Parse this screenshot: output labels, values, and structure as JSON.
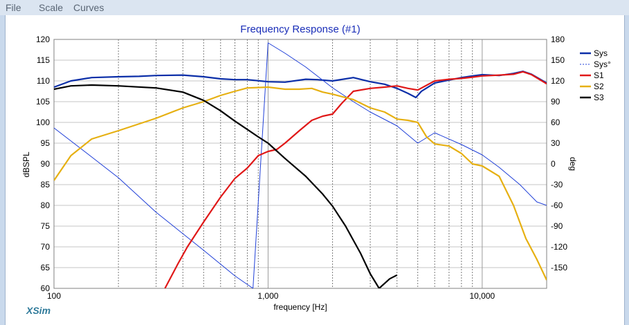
{
  "menu": {
    "file": "File",
    "scale": "Scale",
    "curves": "Curves"
  },
  "brand": "XSim",
  "chart_data": {
    "type": "line",
    "title": "Frequency Response (#1)",
    "xlabel": "frequency [Hz]",
    "ylabel": "dBSPL",
    "y2label": "deg",
    "xscale": "log",
    "xlim": [
      100,
      20000
    ],
    "ylim": [
      60,
      120
    ],
    "y2lim": [
      -180,
      180
    ],
    "x_tick_labels": [
      {
        "value": 100,
        "label": "100"
      },
      {
        "value": 1000,
        "label": "1,000"
      },
      {
        "value": 10000,
        "label": "10,000"
      }
    ],
    "y_ticks": [
      60,
      65,
      70,
      75,
      80,
      85,
      90,
      95,
      100,
      105,
      110,
      115,
      120
    ],
    "y2_ticks": [
      -150,
      -120,
      -90,
      -60,
      -30,
      0,
      30,
      60,
      90,
      120,
      150,
      180
    ],
    "grid": true,
    "legend_position": "right",
    "series": [
      {
        "name": "Sys",
        "color": "#0b2ea8",
        "axis": "left",
        "x": [
          100,
          120,
          150,
          200,
          250,
          300,
          400,
          500,
          600,
          700,
          800,
          1000,
          1200,
          1500,
          1700,
          2000,
          2500,
          3000,
          3500,
          4000,
          4500,
          4900,
          5200,
          6000,
          7000,
          8000,
          9000,
          10000,
          12000,
          14000,
          15500,
          17000,
          20000
        ],
        "y": [
          108.5,
          110,
          110.8,
          111,
          111.1,
          111.3,
          111.4,
          111,
          110.5,
          110.3,
          110.3,
          109.8,
          109.7,
          110.4,
          110.3,
          110,
          110.8,
          109.8,
          109.2,
          108.2,
          107,
          106,
          107.5,
          109.5,
          110.2,
          110.8,
          111.2,
          111.5,
          111.3,
          111.8,
          112.3,
          111.6,
          109.5
        ]
      },
      {
        "name": "Sys°",
        "color": "#1f3fd8",
        "axis": "right",
        "x": [
          100,
          150,
          200,
          300,
          500,
          700,
          850,
          1000,
          1200,
          1500,
          2000,
          2500,
          3000,
          4000,
          5000,
          6000,
          8000,
          10000,
          12000,
          15000,
          18000,
          20000
        ],
        "y": [
          52,
          10,
          -20,
          -70,
          -125,
          -162,
          -180,
          175,
          160,
          140,
          110,
          90,
          75,
          55,
          30,
          45,
          28,
          13,
          -5,
          -30,
          -55,
          -60
        ]
      },
      {
        "name": "S1",
        "color": "#e01818",
        "axis": "left",
        "x": [
          330,
          380,
          420,
          500,
          600,
          700,
          800,
          900,
          1000,
          1100,
          1200,
          1400,
          1600,
          1800,
          2000,
          2200,
          2500,
          3000,
          3500,
          4000,
          4500,
          5000,
          6000,
          7000,
          8000,
          9000,
          10000,
          12000,
          14000,
          15500,
          17000,
          20000
        ],
        "y": [
          60,
          66,
          70,
          76,
          82,
          86.5,
          89,
          92,
          93,
          93.5,
          95,
          98,
          100.5,
          101.5,
          102,
          104.5,
          107.5,
          108.2,
          108.5,
          108.8,
          108.2,
          107.8,
          110,
          110.4,
          110.6,
          110.9,
          111.2,
          111.4,
          111.6,
          112.2,
          111.5,
          109.3
        ]
      },
      {
        "name": "S2",
        "color": "#e6b012",
        "axis": "left",
        "x": [
          100,
          120,
          150,
          200,
          300,
          400,
          500,
          600,
          700,
          800,
          1000,
          1200,
          1400,
          1600,
          1800,
          2000,
          2500,
          3000,
          3500,
          4000,
          4500,
          5000,
          5500,
          6000,
          7000,
          8000,
          9000,
          10000,
          12000,
          14000,
          16000,
          18000,
          20000
        ],
        "y": [
          86,
          92,
          96,
          98,
          101,
          103.5,
          105,
          106.5,
          107.5,
          108.3,
          108.5,
          108,
          108,
          108.2,
          107.3,
          106.8,
          105.5,
          103.5,
          102.5,
          100.8,
          100.5,
          100,
          96.5,
          94.8,
          94.3,
          92.5,
          90,
          89.5,
          87,
          80,
          72,
          67,
          62
        ]
      },
      {
        "name": "S3",
        "color": "#000000",
        "axis": "left",
        "x": [
          100,
          120,
          150,
          200,
          300,
          400,
          500,
          600,
          700,
          800,
          900,
          1000,
          1200,
          1500,
          1800,
          2000,
          2300,
          2700,
          3000,
          3300,
          3700,
          4000
        ],
        "y": [
          108,
          108.8,
          109,
          108.8,
          108.3,
          107.3,
          105.3,
          102.8,
          100.3,
          98.3,
          96.5,
          95,
          91.3,
          87,
          82.7,
          79.8,
          75,
          68.5,
          63.5,
          60,
          62.3,
          63.2
        ]
      }
    ]
  }
}
